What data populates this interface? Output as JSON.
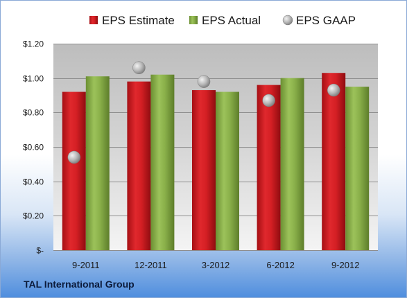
{
  "chart_data": {
    "type": "bar",
    "title": "",
    "xlabel": "",
    "ylabel": "",
    "categories": [
      "9-2011",
      "12-2011",
      "3-2012",
      "6-2012",
      "9-2012"
    ],
    "series": [
      {
        "name": "EPS Estimate",
        "kind": "bar",
        "color": "#d9262b",
        "values": [
          0.92,
          0.98,
          0.93,
          0.96,
          1.03
        ]
      },
      {
        "name": "EPS Actual",
        "kind": "bar",
        "color": "#8ab04a",
        "values": [
          1.01,
          1.02,
          0.92,
          1.0,
          0.95
        ]
      },
      {
        "name": "EPS GAAP",
        "kind": "marker",
        "color": "#b8b8b8",
        "values": [
          0.54,
          1.06,
          0.98,
          0.87,
          0.93
        ]
      }
    ],
    "ylim": [
      0,
      1.2
    ],
    "yticks": [
      0,
      0.2,
      0.4,
      0.6,
      0.8,
      1.0,
      1.2
    ],
    "ytick_labels": [
      "$-",
      "$0.20",
      "$0.40",
      "$0.60",
      "$0.80",
      "$1.00",
      "$1.20"
    ],
    "grid": true,
    "legend_position": "top"
  },
  "company_name": "TAL International Group"
}
